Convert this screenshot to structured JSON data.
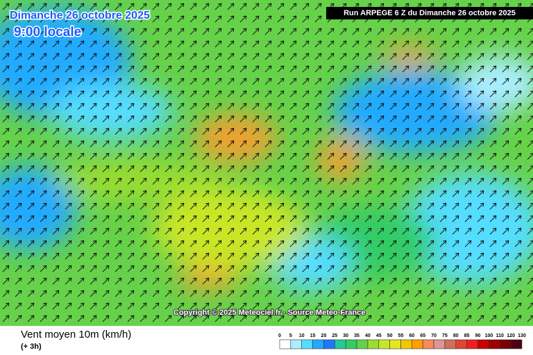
{
  "header": {
    "date": "Dimanche 26 octobre 2025",
    "time": "9:00 locale",
    "run": "Run ARPEGE 6 Z du Dimanche 26 octobre 2025"
  },
  "copyright": "Copyright © 2025 Meteociel.fr - Source Meteo-France",
  "legend": {
    "title": "Vent moyen 10m (km/h)",
    "subtitle": "(+ 3h)",
    "ticks": [
      "0",
      "5",
      "10",
      "15",
      "20",
      "25",
      "30",
      "35",
      "40",
      "45",
      "50",
      "55",
      "60",
      "65",
      "70",
      "75",
      "80",
      "85",
      "90",
      "100",
      "110",
      "120",
      "130"
    ],
    "colors": [
      "#ffffff",
      "#aaeeff",
      "#55ddff",
      "#22aaff",
      "#1e78ff",
      "#22cc99",
      "#33cc66",
      "#66d24a",
      "#99dd33",
      "#c8e628",
      "#e6e61e",
      "#f0c800",
      "#ffa000",
      "#f58c5a",
      "#dc9696",
      "#d26e5a",
      "#dc4632",
      "#f01e1e",
      "#c80000",
      "#a00000",
      "#780000",
      "#500014"
    ]
  }
}
